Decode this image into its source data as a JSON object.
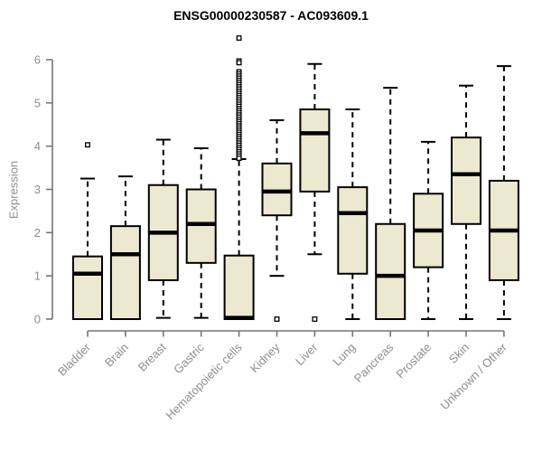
{
  "chart_data": {
    "type": "boxplot",
    "title": "ENSG00000230587 - AC093609.1",
    "ylabel": "Expression",
    "ylim": [
      0,
      6
    ],
    "yticks": [
      0,
      1,
      2,
      3,
      4,
      5,
      6
    ],
    "grid": false,
    "legend": "none",
    "colors": {
      "box_fill": "#EDE8D0",
      "box_stroke": "#000000",
      "median": "#000000",
      "whisker": "#000000",
      "axis": "#757575",
      "tick_labels": "#8e8e8e",
      "title": "#000000",
      "background": "#ffffff"
    },
    "categories": [
      "Bladder",
      "Brain",
      "Breast",
      "Gastric",
      "Hematopoietic cells",
      "Kidney",
      "Liver",
      "Lung",
      "Pancreas",
      "Prostate",
      "Skin",
      "Unknown / Other"
    ],
    "series": [
      {
        "category": "Bladder",
        "whisker_low": 0,
        "q1": 0,
        "median": 1.05,
        "q3": 1.45,
        "whisker_high": 3.25,
        "outliers": [
          4.03
        ]
      },
      {
        "category": "Brain",
        "whisker_low": 0,
        "q1": 0,
        "median": 1.5,
        "q3": 2.15,
        "whisker_high": 3.3,
        "outliers": []
      },
      {
        "category": "Breast",
        "whisker_low": 0.03,
        "q1": 0.9,
        "median": 2.0,
        "q3": 3.1,
        "whisker_high": 4.15,
        "outliers": []
      },
      {
        "category": "Gastric",
        "whisker_low": 0.03,
        "q1": 1.3,
        "median": 2.2,
        "q3": 3.0,
        "whisker_high": 3.95,
        "outliers": []
      },
      {
        "category": "Hematopoietic cells",
        "whisker_low": 0,
        "q1": 0,
        "median": 0.03,
        "q3": 1.47,
        "whisker_high": 3.7,
        "outliers": [
          6.5,
          5.97,
          5.93,
          5.72,
          5.67,
          5.62,
          5.57,
          5.52,
          5.47,
          5.42,
          5.37,
          5.32,
          5.27,
          5.22,
          5.17,
          5.12,
          5.07,
          5.02,
          4.97,
          4.92,
          4.87,
          4.82,
          4.77,
          4.72,
          4.67,
          4.62,
          4.57,
          4.52,
          4.47,
          4.42,
          4.37,
          4.32,
          4.27,
          4.22,
          4.17,
          4.12,
          4.07,
          4.02,
          3.97,
          3.92,
          3.87,
          3.82,
          3.77,
          3.72
        ]
      },
      {
        "category": "Kidney",
        "whisker_low": 1.0,
        "q1": 2.4,
        "median": 2.95,
        "q3": 3.6,
        "whisker_high": 4.6,
        "outliers": [
          0
        ]
      },
      {
        "category": "Liver",
        "whisker_low": 1.5,
        "q1": 2.95,
        "median": 4.3,
        "q3": 4.85,
        "whisker_high": 5.9,
        "outliers": [
          0
        ]
      },
      {
        "category": "Lung",
        "whisker_low": 0,
        "q1": 1.05,
        "median": 2.45,
        "q3": 3.05,
        "whisker_high": 4.85,
        "outliers": []
      },
      {
        "category": "Pancreas",
        "whisker_low": 0,
        "q1": 0,
        "median": 1.0,
        "q3": 2.2,
        "whisker_high": 5.35,
        "outliers": []
      },
      {
        "category": "Prostate",
        "whisker_low": 0,
        "q1": 1.2,
        "median": 2.05,
        "q3": 2.9,
        "whisker_high": 4.1,
        "outliers": []
      },
      {
        "category": "Skin",
        "whisker_low": 0,
        "q1": 2.2,
        "median": 3.35,
        "q3": 4.2,
        "whisker_high": 5.4,
        "outliers": []
      },
      {
        "category": "Unknown / Other",
        "whisker_low": 0,
        "q1": 0.9,
        "median": 2.05,
        "q3": 3.2,
        "whisker_high": 5.85,
        "outliers": []
      }
    ]
  }
}
